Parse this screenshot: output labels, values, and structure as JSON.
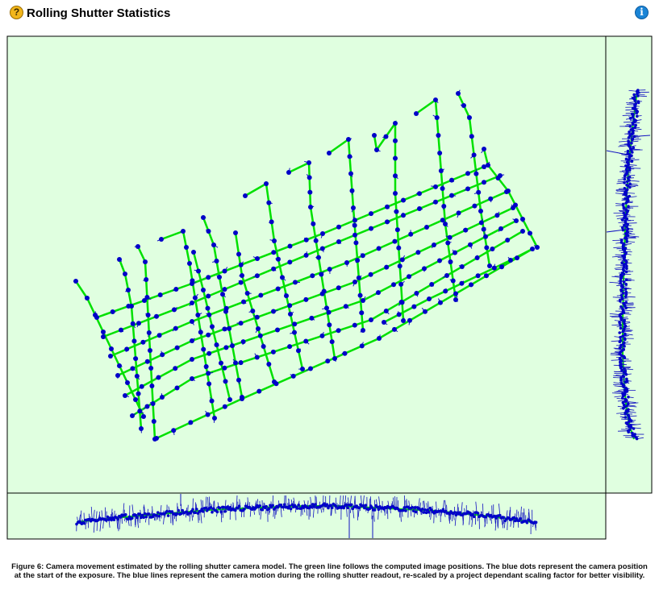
{
  "header": {
    "title": "Rolling Shutter Statistics",
    "help_icon": "question-icon",
    "info_icon": "info-icon",
    "help_glyph": "?",
    "info_glyph": "i"
  },
  "caption": "Figure 6: Camera movement estimated by the rolling shutter camera model. The green line follows the computed image positions. The blue dots represent the camera position at the start of the exposure. The blue lines represent the camera motion during the rolling shutter readout, re-scaled by a project dependant scaling factor for better visibility.",
  "colors": {
    "panel_bg": "#e0ffe0",
    "path": "#00e000",
    "dot": "#0000c8",
    "motion": "#1010c0",
    "border": "#000000"
  },
  "chart_data": [
    {
      "type": "scatter",
      "panel": "top-view",
      "title": "",
      "grid": false,
      "legend": "none",
      "flight_lines": [
        [
          [
            171,
            306
          ],
          [
            180,
            325
          ],
          [
            192,
            545
          ]
        ],
        [
          [
            148,
            322
          ],
          [
            155,
            340
          ],
          [
            163,
            380
          ],
          [
            175,
            532
          ]
        ],
        [
          [
            94,
            349
          ],
          [
            108,
            370
          ],
          [
            178,
            517
          ]
        ],
        [
          [
            200,
            297
          ],
          [
            227,
            287
          ],
          [
            235,
            327
          ],
          [
            266,
            519
          ]
        ],
        [
          [
            252,
            270
          ],
          [
            265,
            304
          ],
          [
            272,
            344
          ],
          [
            300,
            493
          ]
        ],
        [
          [
            240,
            313
          ],
          [
            252,
            360
          ],
          [
            285,
            496
          ]
        ],
        [
          [
            292,
            289
          ],
          [
            300,
            342
          ],
          [
            340,
            474
          ]
        ],
        [
          [
            304,
            243
          ],
          [
            330,
            228
          ],
          [
            340,
            299
          ],
          [
            375,
            458
          ]
        ],
        [
          [
            358,
            214
          ],
          [
            383,
            202
          ],
          [
            385,
            257
          ],
          [
            415,
            445
          ]
        ],
        [
          [
            408,
            190
          ],
          [
            432,
            173
          ],
          [
            438,
            258
          ],
          [
            450,
            410
          ]
        ],
        [
          [
            464,
            168
          ],
          [
            467,
            186
          ],
          [
            490,
            153
          ],
          [
            490,
            240
          ],
          [
            500,
            398
          ]
        ],
        [
          [
            516,
            141
          ],
          [
            540,
            124
          ],
          [
            552,
            278
          ],
          [
            565,
            372
          ]
        ],
        [
          [
            568,
            116
          ],
          [
            582,
            146
          ],
          [
            596,
            262
          ],
          [
            607,
            330
          ]
        ],
        [
          [
            600,
            185
          ],
          [
            605,
            205
          ],
          [
            630,
            237
          ],
          [
            666,
            307
          ]
        ],
        [
          [
            120,
            394
          ],
          [
            238,
            352
          ],
          [
            400,
            290
          ],
          [
            600,
            207
          ]
        ],
        [
          [
            128,
            418
          ],
          [
            238,
            376
          ],
          [
            420,
            300
          ],
          [
            620,
            218
          ]
        ],
        [
          [
            137,
            442
          ],
          [
            238,
            399
          ],
          [
            430,
            326
          ],
          [
            628,
            238
          ]
        ],
        [
          [
            146,
            466
          ],
          [
            238,
            423
          ],
          [
            440,
            350
          ],
          [
            636,
            258
          ]
        ],
        [
          [
            155,
            491
          ],
          [
            238,
            446
          ],
          [
            450,
            373
          ],
          [
            640,
            274
          ]
        ],
        [
          [
            164,
            516
          ],
          [
            238,
            470
          ],
          [
            460,
            397
          ],
          [
            648,
            287
          ]
        ],
        [
          [
            194,
            544
          ],
          [
            300,
            495
          ],
          [
            470,
            420
          ],
          [
            660,
            309
          ],
          [
            633,
            323
          ],
          [
            532,
            371
          ],
          [
            476,
            400
          ]
        ]
      ]
    },
    {
      "type": "scatter",
      "panel": "side-view-bottom",
      "title": "",
      "grid": false,
      "legend": "none",
      "x": [
        95,
        140,
        200,
        260,
        320,
        380,
        420,
        480,
        540,
        600,
        660
      ],
      "y": [
        648,
        643,
        638,
        633,
        630,
        628,
        628,
        631,
        634,
        640,
        648
      ]
    },
    {
      "type": "scatter",
      "panel": "side-view-right",
      "title": "",
      "grid": false,
      "legend": "none",
      "x": [
        790,
        784,
        779,
        776,
        774,
        773,
        772,
        772,
        774,
        777,
        781,
        786
      ],
      "y": [
        112,
        160,
        210,
        260,
        310,
        350,
        400,
        440,
        480,
        510,
        530,
        545
      ]
    }
  ]
}
